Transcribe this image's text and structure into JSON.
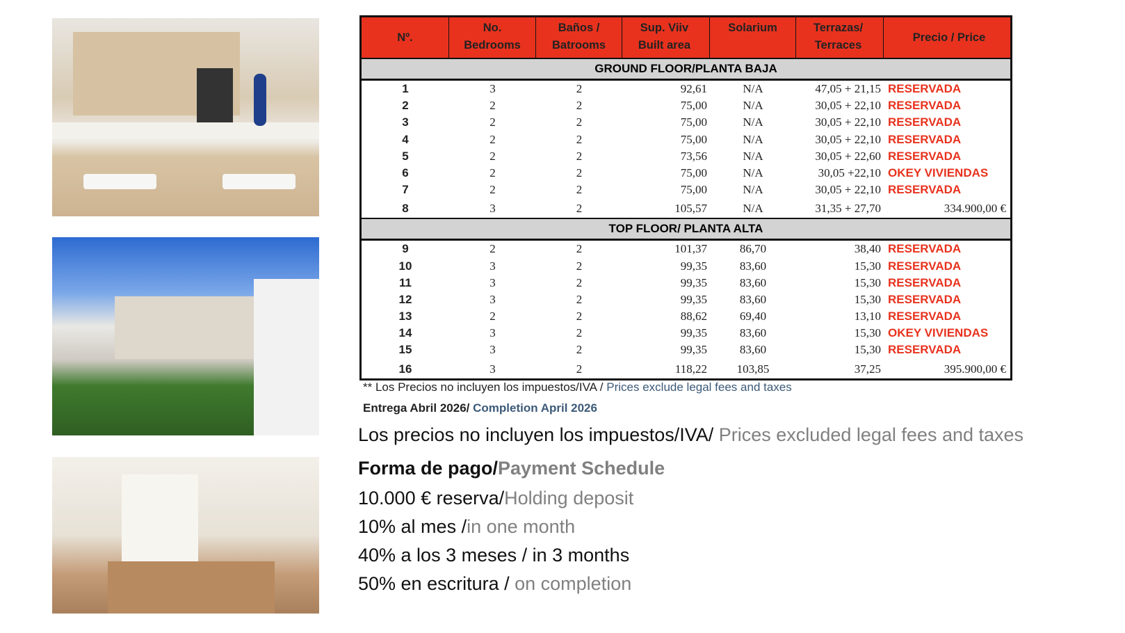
{
  "table": {
    "headers": [
      [
        "Nº."
      ],
      [
        "No.",
        "Bedrooms"
      ],
      [
        "Baños /",
        "Batrooms"
      ],
      [
        "Sup. Viiv",
        "Built area"
      ],
      [
        "Solarium",
        ""
      ],
      [
        "Terrazas/",
        "Terraces"
      ],
      [
        "Precio / Price"
      ]
    ],
    "sections": [
      {
        "title": "GROUND FLOOR/PLANTA BAJA",
        "rows": [
          [
            "1",
            "3",
            "2",
            "92,61",
            "N/A",
            "47,05 + 21,15",
            "RESERVADA"
          ],
          [
            "2",
            "2",
            "2",
            "75,00",
            "N/A",
            "30,05 + 22,10",
            "RESERVADA"
          ],
          [
            "3",
            "2",
            "2",
            "75,00",
            "N/A",
            "30,05 + 22,10",
            "RESERVADA"
          ],
          [
            "4",
            "2",
            "2",
            "75,00",
            "N/A",
            "30,05 + 22,10",
            "RESERVADA"
          ],
          [
            "5",
            "2",
            "2",
            "73,56",
            "N/A",
            "30,05 + 22,60",
            "RESERVADA"
          ],
          [
            "6",
            "2",
            "2",
            "75,00",
            "N/A",
            "30,05 +22,10",
            "OKEY VIVIENDAS"
          ],
          [
            "7",
            "2",
            "2",
            "75,00",
            "N/A",
            "30,05 + 22,10",
            "RESERVADA"
          ],
          [
            "8",
            "3",
            "2",
            "105,57",
            "N/A",
            "31,35 + 27,70",
            "334.900,00 €"
          ]
        ]
      },
      {
        "title": "TOP FLOOR/ PLANTA ALTA",
        "rows": [
          [
            "9",
            "2",
            "2",
            "101,37",
            "86,70",
            "38,40",
            "RESERVADA"
          ],
          [
            "10",
            "3",
            "2",
            "99,35",
            "83,60",
            "15,30",
            "RESERVADA"
          ],
          [
            "11",
            "3",
            "2",
            "99,35",
            "83,60",
            "15,30",
            "RESERVADA"
          ],
          [
            "12",
            "3",
            "2",
            "99,35",
            "83,60",
            "15,30",
            "RESERVADA"
          ],
          [
            "13",
            "2",
            "2",
            "88,62",
            "69,40",
            "13,10",
            "RESERVADA"
          ],
          [
            "14",
            "3",
            "2",
            "99,35",
            "83,60",
            "15,30",
            "OKEY VIVIENDAS"
          ],
          [
            "15",
            "3",
            "2",
            "99,35",
            "83,60",
            "15,30",
            "RESERVADA"
          ],
          [
            "16",
            "3",
            "2",
            "118,22",
            "103,85",
            "37,25",
            "395.900,00 €"
          ]
        ]
      }
    ]
  },
  "notes": {
    "taxes_es": "** Los Precios no incluyen los impuestos/IVA / ",
    "taxes_en": "Prices exclude legal fees and taxes",
    "delivery_es": "Entrega Abril 2026/ ",
    "delivery_en": "Completion April 2026"
  },
  "payment": {
    "taxes_es": "Los precios no incluyen los impuestos/IVA/ ",
    "taxes_en": "Prices excluded legal fees and taxes",
    "title_es": "Forma de pago/",
    "title_en": "Payment Schedule",
    "items": [
      {
        "es": "10.000 € reserva/",
        "en": "Holding deposit"
      },
      {
        "es": "10% al mes /",
        "en": "in one month"
      },
      {
        "es": "40% a los 3 meses / in 3 months",
        "en": ""
      },
      {
        "es": "50% en escritura / ",
        "en": "on completion"
      }
    ]
  },
  "colors": {
    "header": "#e8321e",
    "status": "#e8321e",
    "section": "#d3d3d3",
    "english_note": "#3c5a78",
    "english_text": "#808080"
  }
}
